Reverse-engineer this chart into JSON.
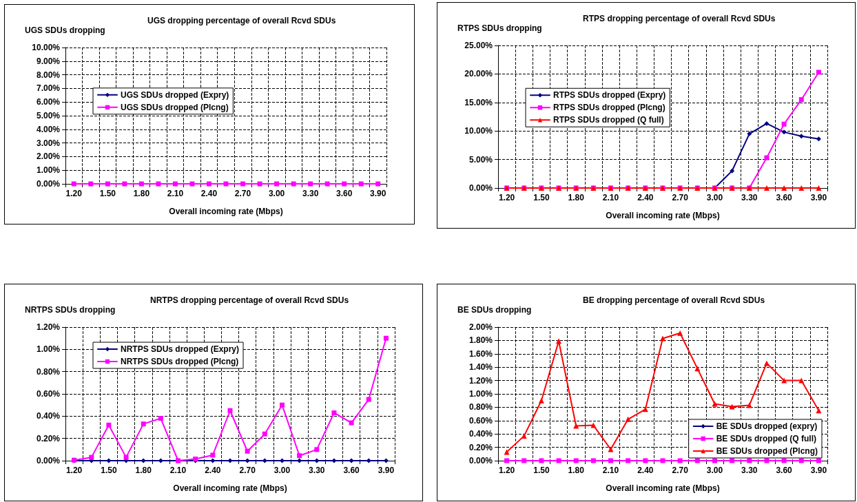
{
  "chart_data": [
    {
      "type": "line",
      "title": "UGS dropping percentage of overall Rcvd SDUs",
      "ylabel": "UGS SDUs dropping",
      "xlabel": "Overall incoming rate (Mbps)",
      "categories": [
        "1.20",
        null,
        "1.50",
        null,
        "1.80",
        null,
        "2.10",
        null,
        "2.40",
        null,
        "2.70",
        null,
        "3.00",
        null,
        "3.30",
        null,
        "3.60",
        null,
        "3.90"
      ],
      "series": [
        {
          "name": "UGS SDUs dropped (Expry)",
          "color": "#000080",
          "marker": "diamond",
          "values": [
            null,
            null,
            null,
            null,
            null,
            null,
            null,
            null,
            null,
            null,
            null,
            null,
            null,
            null,
            null,
            null,
            null,
            null,
            null
          ]
        },
        {
          "name": "UGS SDUs dropped (Plcng)",
          "color": "#ff00ff",
          "marker": "square",
          "values": [
            0,
            0,
            0,
            0,
            0,
            0,
            0,
            0,
            0,
            0,
            0,
            0,
            0,
            0,
            0,
            0,
            0,
            0,
            0
          ]
        }
      ],
      "ylim": [
        0,
        10
      ],
      "yticks": [
        {
          "value": 0,
          "label": "0.00%"
        },
        {
          "value": 1,
          "label": "1.00%"
        },
        {
          "value": 2,
          "label": "2.00%"
        },
        {
          "value": 3,
          "label": "3.00%"
        },
        {
          "value": 4,
          "label": "4.00%"
        },
        {
          "value": 5,
          "label": "5.00%"
        },
        {
          "value": 6,
          "label": "6.00%"
        },
        {
          "value": 7,
          "label": "7.00%"
        },
        {
          "value": 8,
          "label": "8.00%"
        },
        {
          "value": 9,
          "label": "9.00%"
        },
        {
          "value": 10,
          "label": "10.00%"
        }
      ],
      "grid": true,
      "legend": "center left",
      "line_style": "solid"
    },
    {
      "type": "line",
      "title": "RTPS dropping percentage of overall Rcvd SDUs",
      "ylabel": "RTPS SDUs dropping",
      "xlabel": "Overall incoming rate (Mbps)",
      "categories": [
        "1.20",
        null,
        "1.50",
        null,
        "1.80",
        null,
        "2.10",
        null,
        "2.40",
        null,
        "2.70",
        null,
        "3.00",
        null,
        "3.30",
        null,
        "3.60",
        null,
        "3.90"
      ],
      "series": [
        {
          "name": "RTPS SDUs dropped (Expry)",
          "color": "#000080",
          "marker": "diamond",
          "values": [
            null,
            null,
            null,
            null,
            null,
            null,
            null,
            null,
            null,
            null,
            null,
            null,
            0,
            3.0,
            9.5,
            11.3,
            9.8,
            9.1,
            8.6
          ]
        },
        {
          "name": "RTPS SDUs dropped (Plcng)",
          "color": "#ff00ff",
          "marker": "square",
          "values": [
            0,
            0,
            0,
            0,
            0,
            0,
            0,
            0,
            0,
            0,
            0,
            0,
            0,
            0,
            0,
            5.3,
            11.2,
            15.5,
            20.3
          ]
        },
        {
          "name": "RTPS SDUs dropped (Q full)",
          "color": "#ff0000",
          "marker": "triangle",
          "values": [
            0,
            0,
            0,
            0,
            0,
            0,
            0,
            0,
            0,
            0,
            0,
            0,
            0,
            0,
            0,
            0,
            0,
            0,
            0
          ]
        }
      ],
      "ylim": [
        0,
        25
      ],
      "yticks": [
        {
          "value": 0,
          "label": "0.00%"
        },
        {
          "value": 5,
          "label": "5.00%"
        },
        {
          "value": 10,
          "label": "10.00%"
        },
        {
          "value": 15,
          "label": "15.00%"
        },
        {
          "value": 20,
          "label": "20.00%"
        },
        {
          "value": 25,
          "label": "25.00%"
        }
      ],
      "grid": true,
      "legend": "center left",
      "line_style": "solid"
    },
    {
      "type": "line",
      "title": "NRTPS dropping percentage of overall Rcvd SDUs",
      "ylabel": "NRTPS SDUs dropping",
      "xlabel": "Overall incoming rate (Mbps)",
      "categories": [
        "1.20",
        null,
        "1.50",
        null,
        "1.80",
        null,
        "2.10",
        null,
        "2.40",
        null,
        "2.70",
        null,
        "3.00",
        null,
        "3.30",
        null,
        "3.60",
        null,
        "3.90"
      ],
      "series": [
        {
          "name": "NRTPS SDUs dropped (Expry)",
          "color": "#000080",
          "marker": "diamond",
          "values": [
            0,
            0,
            0,
            0,
            0,
            0,
            0,
            0,
            0,
            0,
            0,
            0,
            0,
            0,
            0,
            0,
            0,
            0,
            0
          ]
        },
        {
          "name": "NRTPS SDUs dropped (Plcng)",
          "color": "#ff00ff",
          "marker": "square",
          "values": [
            0.005,
            0.03,
            0.32,
            0.03,
            0.33,
            0.38,
            0.0,
            0.015,
            0.05,
            0.45,
            0.085,
            0.24,
            0.5,
            0.045,
            0.1,
            0.43,
            0.34,
            0.55,
            1.1
          ]
        }
      ],
      "ylim": [
        0,
        1.2
      ],
      "yticks": [
        {
          "value": 0,
          "label": "0.00%"
        },
        {
          "value": 0.2,
          "label": "0.20%"
        },
        {
          "value": 0.4,
          "label": "0.40%"
        },
        {
          "value": 0.6,
          "label": "0.60%"
        },
        {
          "value": 0.8,
          "label": "0.80%"
        },
        {
          "value": 1.0,
          "label": "1.00%"
        },
        {
          "value": 1.2,
          "label": "1.20%"
        }
      ],
      "grid": true,
      "legend": "top left",
      "line_style": "solid"
    },
    {
      "type": "line",
      "title": "BE dropping percentage of overall Rcvd SDUs",
      "ylabel": "BE SDUs dropping",
      "xlabel": "Overall incoming rate (Mbps)",
      "categories": [
        "1.20",
        null,
        "1.50",
        null,
        "1.80",
        null,
        "2.10",
        null,
        "2.40",
        null,
        "2.70",
        null,
        "3.00",
        null,
        "3.30",
        null,
        "3.60",
        null,
        "3.90"
      ],
      "series": [
        {
          "name": "BE SDUs dropped (expry)",
          "color": "#000080",
          "marker": "diamond",
          "values": [
            null,
            null,
            null,
            null,
            null,
            null,
            null,
            null,
            null,
            null,
            null,
            null,
            null,
            null,
            null,
            null,
            null,
            null,
            null
          ]
        },
        {
          "name": "BE SDUs dropped (Q full)",
          "color": "#ff00ff",
          "marker": "square",
          "values": [
            0,
            0,
            0,
            0,
            0,
            0,
            0,
            0,
            0,
            0,
            0,
            0,
            0,
            0,
            0,
            0,
            0,
            0,
            0
          ]
        },
        {
          "name": "BE SDUs dropped (Plcng)",
          "color": "#ff0000",
          "marker": "triangle",
          "values": [
            0.13,
            0.37,
            0.9,
            1.79,
            0.52,
            0.53,
            0.17,
            0.62,
            0.77,
            1.83,
            1.91,
            1.38,
            0.85,
            0.81,
            0.83,
            1.46,
            1.2,
            1.2,
            0.75
          ]
        }
      ],
      "ylim": [
        0,
        2
      ],
      "yticks": [
        {
          "value": 0,
          "label": "0.00%"
        },
        {
          "value": 0.2,
          "label": "0.20%"
        },
        {
          "value": 0.4,
          "label": "0.40%"
        },
        {
          "value": 0.6,
          "label": "0.60%"
        },
        {
          "value": 0.8,
          "label": "0.80%"
        },
        {
          "value": 1.0,
          "label": "1.00%"
        },
        {
          "value": 1.2,
          "label": "1.20%"
        },
        {
          "value": 1.4,
          "label": "1.40%"
        },
        {
          "value": 1.6,
          "label": "1.60%"
        },
        {
          "value": 1.8,
          "label": "1.80%"
        },
        {
          "value": 2.0,
          "label": "2.00%"
        }
      ],
      "grid": true,
      "legend": "bottom right",
      "line_style": "solid"
    }
  ]
}
